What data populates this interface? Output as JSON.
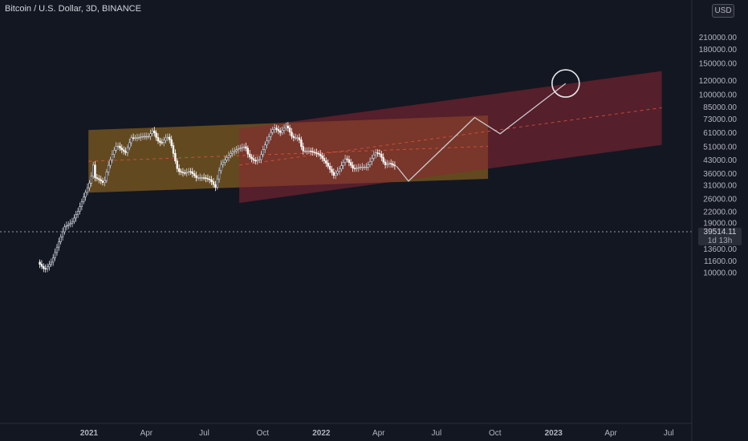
{
  "header": {
    "symbol_title": "Bitcoin / U.S. Dollar, 3D, BINANCE",
    "currency": "USD"
  },
  "price_label": {
    "price": "39514.11",
    "countdown": "1d 13h"
  },
  "colors": {
    "background": "#131722",
    "axis_text": "#b2b5be",
    "candle": "#d1d4dc",
    "channel_orange": "#9a6a20",
    "channel_red": "#8c2633",
    "projection_line": "#c8c9ce",
    "midline_dash": "#e0553f"
  },
  "chart_data": {
    "type": "candlestick",
    "title": "Bitcoin / U.S. Dollar, 3D, BINANCE",
    "y_scale": "log",
    "ylim": [
      9500,
      210000
    ],
    "y_ticks": [
      "210000.00",
      "180000.00",
      "150000.00",
      "120000.00",
      "100000.00",
      "85000.00",
      "73000.00",
      "61000.00",
      "51000.00",
      "43000.00",
      "36000.00",
      "31000.00",
      "26000.00",
      "22000.00",
      "19000.00",
      "16000.00",
      "13600.00",
      "11600.00",
      "10000.00"
    ],
    "x_ticks": [
      "2021",
      "Apr",
      "Jul",
      "Oct",
      "2022",
      "Apr",
      "Jul",
      "Oct",
      "2023",
      "Apr",
      "Jul"
    ],
    "current_price": 39514.11,
    "price_path": [
      [
        "2020-10-14",
        11400
      ],
      [
        "2020-10-25",
        10300
      ],
      [
        "2020-11-05",
        11500
      ],
      [
        "2020-11-15",
        14500
      ],
      [
        "2020-11-25",
        18000
      ],
      [
        "2020-12-06",
        19000
      ],
      [
        "2020-12-16",
        22000
      ],
      [
        "2020-12-26",
        27000
      ],
      [
        "2021-01-05",
        33000
      ],
      [
        "2021-01-09",
        40000
      ],
      [
        "2021-01-12",
        34000
      ],
      [
        "2021-01-19",
        33000
      ],
      [
        "2021-01-26",
        31500
      ],
      [
        "2021-01-31",
        38000
      ],
      [
        "2021-02-08",
        46000
      ],
      [
        "2021-02-15",
        52000
      ],
      [
        "2021-02-22",
        49000
      ],
      [
        "2021-03-01",
        47000
      ],
      [
        "2021-03-10",
        57000
      ],
      [
        "2021-03-20",
        57000
      ],
      [
        "2021-03-28",
        58000
      ],
      [
        "2021-04-06",
        58000
      ],
      [
        "2021-04-13",
        63000
      ],
      [
        "2021-04-20",
        55000
      ],
      [
        "2021-04-26",
        53000
      ],
      [
        "2021-05-05",
        58000
      ],
      [
        "2021-05-10",
        55000
      ],
      [
        "2021-05-16",
        45000
      ],
      [
        "2021-05-22",
        37000
      ],
      [
        "2021-06-01",
        36000
      ],
      [
        "2021-06-10",
        37000
      ],
      [
        "2021-06-20",
        34000
      ],
      [
        "2021-07-01",
        34000
      ],
      [
        "2021-07-12",
        33000
      ],
      [
        "2021-07-20",
        30000
      ],
      [
        "2021-07-28",
        40000
      ],
      [
        "2021-08-07",
        44000
      ],
      [
        "2021-08-14",
        47000
      ],
      [
        "2021-08-23",
        49000
      ],
      [
        "2021-09-05",
        51000
      ],
      [
        "2021-09-10",
        45000
      ],
      [
        "2021-09-20",
        42000
      ],
      [
        "2021-09-27",
        43000
      ],
      [
        "2021-10-05",
        51000
      ],
      [
        "2021-10-15",
        61000
      ],
      [
        "2021-10-20",
        65000
      ],
      [
        "2021-10-30",
        61000
      ],
      [
        "2021-11-09",
        67000
      ],
      [
        "2021-11-18",
        57000
      ],
      [
        "2021-11-28",
        57000
      ],
      [
        "2021-12-04",
        48000
      ],
      [
        "2021-12-15",
        48000
      ],
      [
        "2021-12-30",
        46000
      ],
      [
        "2022-01-10",
        41000
      ],
      [
        "2022-01-22",
        35000
      ],
      [
        "2022-01-31",
        38000
      ],
      [
        "2022-02-10",
        44000
      ],
      [
        "2022-02-22",
        38000
      ],
      [
        "2022-03-05",
        39000
      ],
      [
        "2022-03-15",
        39000
      ],
      [
        "2022-03-28",
        47000
      ],
      [
        "2022-04-05",
        46000
      ],
      [
        "2022-04-12",
        40000
      ],
      [
        "2022-04-20",
        41000
      ],
      [
        "2022-04-27",
        39514
      ]
    ],
    "projection_path": [
      [
        "2022-04-29",
        39500
      ],
      [
        "2022-05-18",
        32500
      ],
      [
        "2022-08-30",
        74000
      ],
      [
        "2022-10-09",
        60000
      ],
      [
        "2023-01-20",
        115000
      ]
    ],
    "target_circle": {
      "date": "2023-01-20",
      "price": 115000
    },
    "channels": [
      {
        "color": "orange",
        "from": "2020-12-31",
        "to": "2022-09-20",
        "upper": [
          63000,
          76000
        ],
        "lower": [
          28000,
          33500
        ],
        "mid": [
          42000,
          51000
        ]
      },
      {
        "color": "red",
        "from": "2021-08-25",
        "to": "2023-06-20",
        "upper": [
          64000,
          135000
        ],
        "lower": [
          24500,
          52000
        ],
        "mid": [
          40000,
          84000
        ]
      }
    ]
  }
}
